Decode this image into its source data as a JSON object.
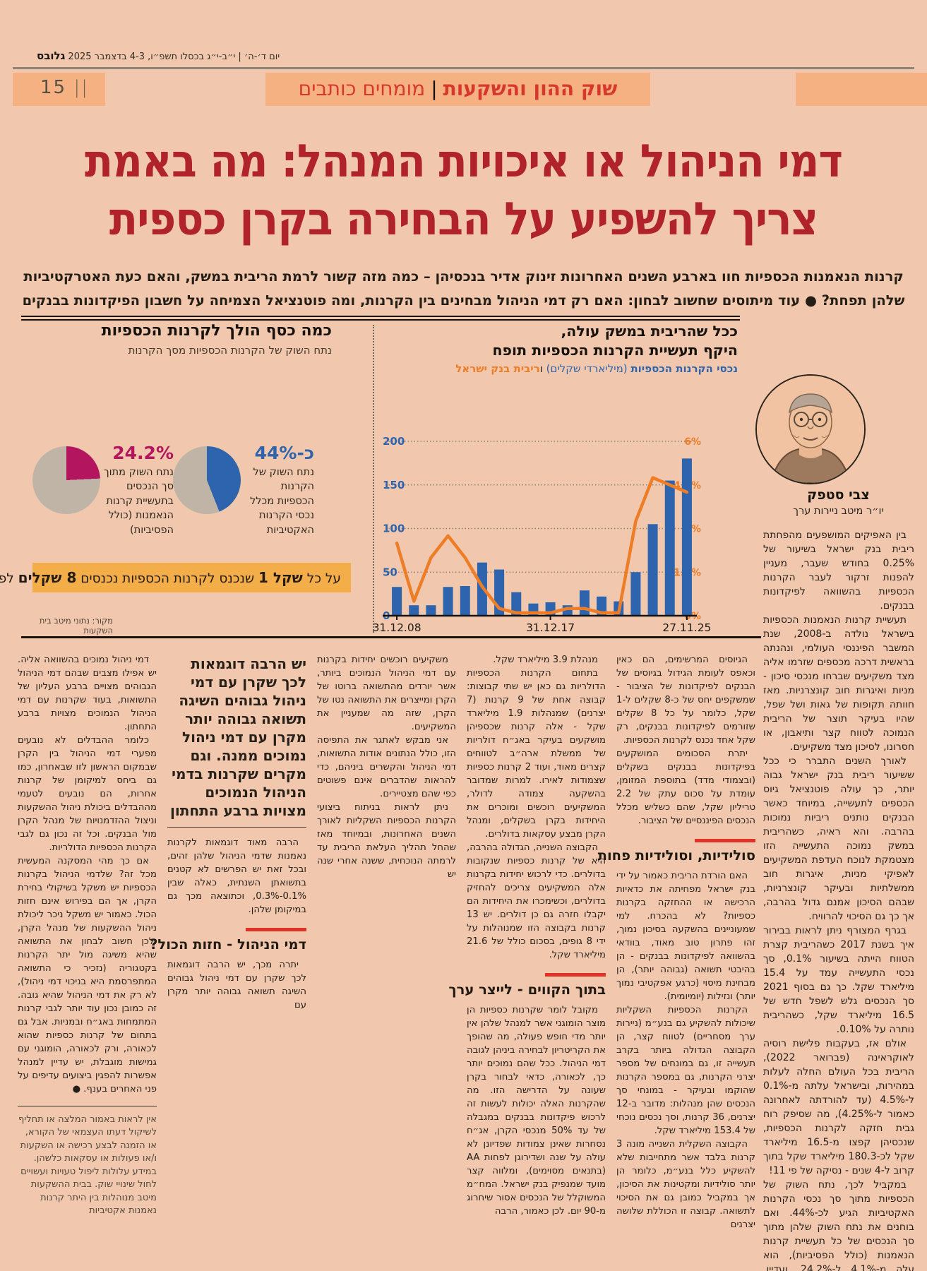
{
  "colors": {
    "page_bg": "#f1c8ad",
    "band_bg": "#f6b183",
    "accent_red": "#d6382c",
    "headline_red": "#b0232a",
    "subhead_bar_red": "#e03226",
    "blue": "#2d64ad",
    "orange": "#ed7d26",
    "magenta": "#b3165e",
    "pie_gray": "#c0b4a6",
    "strip_yellow": "#f3ad49"
  },
  "masthead": {
    "date_line": "יום ד׳-ה׳ | י״ב-י״ג בכסלו תשפ״ו, 4-3 בדצמבר 2025 ",
    "brand": "גלובס",
    "page_number": "15",
    "page_number_bars": "||",
    "section_title": "שוק ההון והשקעות",
    "section_separator": "|",
    "section_subtitle": "מומחים כותבים"
  },
  "headline": {
    "line1": "דמי הניהול או איכויות המנהל: מה באמת",
    "line2": "צריך להשפיע על הבחירה בקרן כספית"
  },
  "standfirst": {
    "line1": "קרנות הנאמנות הכספיות חוו בארבע השנים האחרונות זינוק אדיר בנכסיהן – כמה מזה קשור לרמת הריבית במשק, והאם כעת האטרקטיביות",
    "line2": "שלהן תפחת? ● עוד מיתוסים שחשוב לבחון: האם רק דמי הניהול מבחינים בין הקרנות, ומה פוטנציאל הצמיחה על חשבון הפיקדונות בבנקים"
  },
  "infographic": {
    "pies_title": "כמה כסף הולך לקרנות הכספיות",
    "pies_subtitle": "נתח השוק של הקרנות הכספיות מסך הקרנות",
    "chart_title_line1": "ככל שהריבית במשק עולה,",
    "chart_title_line2": "היקף תעשיית הקרנות הכספיות תופח",
    "legend": {
      "assets_bold": "נכסי הקרנות הכספיות",
      "assets_units": " (מיליארדי שקלים) ",
      "conjunction": "ו",
      "rate": "ריבית בנק ישראל"
    },
    "shekel_strip": {
      "prefix": "על כל ",
      "bold1": "1 שקל",
      "middle": " שנכנס לקרנות הכספיות נכנסים ",
      "bold2": "8 שקלים",
      "suffix": " לפיקדונות"
    },
    "source": "מקור: נתוני מיטב בית השקעות"
  },
  "chart_data": [
    {
      "type": "bar",
      "title": "ככל שהריבית במשק עולה, היקף תעשיית הקרנות הכספיות תופח",
      "categories": [
        "2008",
        "2009",
        "2010",
        "2011",
        "2012",
        "2013",
        "2014",
        "2015",
        "2016",
        "2017",
        "2018",
        "2019",
        "2020",
        "2021",
        "2022",
        "2023",
        "2024",
        "2025"
      ],
      "x_tick_labels": [
        {
          "index": 0,
          "label": "31.12.08"
        },
        {
          "index": 9,
          "label": "31.12.17"
        },
        {
          "index": 17,
          "label": "27.11.25"
        }
      ],
      "series": [
        {
          "name": "נכסי הקרנות הכספיות (מיליארדי שקלים)",
          "kind": "bar",
          "axis": "left",
          "color": "#2d64ad",
          "values": [
            33,
            12,
            12,
            33,
            34,
            61,
            53,
            27,
            14,
            15.4,
            12,
            29,
            22,
            16.5,
            50,
            105,
            155,
            180.3
          ]
        },
        {
          "name": "ריבית בנק ישראל",
          "kind": "line",
          "axis": "right",
          "color": "#ed7d26",
          "values": [
            2.5,
            0.5,
            2.0,
            2.75,
            2.0,
            1.0,
            0.25,
            0.1,
            0.1,
            0.1,
            0.25,
            0.25,
            0.1,
            0.1,
            3.25,
            4.75,
            4.5,
            4.25
          ]
        }
      ],
      "ylim_left": [
        0,
        200
      ],
      "left_ticks": [
        0,
        50,
        100,
        150,
        200
      ],
      "ylim_right_percent": [
        0,
        6
      ],
      "right_ticks": [
        "0%",
        "1.5%",
        "3%",
        "4.5%",
        "6%"
      ],
      "grid": "dotted-horizontal",
      "legend_position": "top-right"
    },
    {
      "type": "pie",
      "name": "share-of-active-funds",
      "value_label": "כ-44%",
      "label": "נתח השוק של הקרנות הכספיות מכלל נכסי הקרנות האקטיביות",
      "value": 44,
      "color": "#2d64ad",
      "rest_color": "#c0b4a6"
    },
    {
      "type": "pie",
      "name": "share-of-whole-industry",
      "value_label": "24.2%",
      "label": "נתח השוק מתוך סך הנכסים בתעשיית קרנות הנאמנות (כולל הפסיביות)",
      "value": 24.2,
      "color": "#b3165e",
      "rest_color": "#c0b4a6"
    }
  ],
  "author": {
    "name": "צבי סטפק",
    "role": "יו״ר מיטב ניירות ערך"
  },
  "columns": [
    {
      "id": "col-1",
      "items": [
        {
          "t": "p",
          "text": "בין האפיקים המושפעים מהפחתת ריבית בנק ישראל בשיעור של 0.25% בחודש שעבר, מעניין להפנות זרקור לעבר הקרנות הכספיות בהשוואה לפיקדונות בבנקים."
        },
        {
          "t": "p",
          "text": "תעשיית קרנות הנאמנות הכספיות בישראל נולדה ב-2008, שנת המשבר הפיננסי העולמי, ונהנתה בראשית דרכה מכספים שזרמו אליה מצד משקיעים שברחו מנכסי סיכון - מניות ואיגרות חוב קונצרניות. מאז חוותה תקופות של גאות ושל שפל, שהיו בעיקר תוצר של הריבית הנמוכה לטווח קצר ותיאבון, או חסרונו, לסיכון מצד משקיעים."
        },
        {
          "t": "p",
          "text": "לאורך השנים התברר כי ככל ששיעור ריבית בנק ישראל גבוה יותר, כך עולה פוטנציאל גיוס הכספים לתעשייה, במיוחד כאשר הבנקים נותנים ריביות נמוכות בהרבה. והא ראיה, כשהריבית במשק נמוכה התעשייה הזו מצטמקת לנוכח העדפת המשקיעים לאפיקי מניות, איגרות חוב ממשלתיות ובעיקר קונצרניות, שבהם הסיכון אמנם גדול בהרבה, אך כך גם הסיכוי להרוויח."
        },
        {
          "t": "p",
          "text": "בגרף המצורף ניתן לראות בבירור איך בשנת 2017 כשהריבית קצרת הטווח הייתה בשיעור 0.1%, סך נכסי התעשייה עמד על 15.4 מיליארד שקל. כך גם בסוף 2021 סך הנכסים גלש לשפל חדש של 16.5 מיליארד שקל, כשהריבית נותרה על 0.10%."
        },
        {
          "t": "p",
          "text": "אולם אז, בעקבות פלישת רוסיה לאוקראינה (פברואר 2022), הריבית בכל העולם החלה לעלות במהירות, ובישראל עלתה מ-0.1% ל-4.5% (עד להורדתה לאחרונה כאמור ל-4.25%), מה שסיפק רוח גבית חזקה לקרנות הכספיות, שנכסיהן קפצו מ-16.5 מיליארד שקל לכ-180.3 מיליארד שקל בתוך קרוב ל-4 שנים - נסיקה של פי 11!"
        },
        {
          "t": "p",
          "text": "במקביל לכך, נתח השוק של הכספיות מתוך סך נכסי הקרנות האקטיביות הגיע לכ-44%. ואם בוחנים את נתח השוק שלהן מתוך סך הנכסים של כל תעשיית קרנות הנאמנות (כולל הפסיביות), הוא עלה מ-4.1% ל-24.2%. ועדיין, למרות"
        }
      ]
    },
    {
      "id": "col-2",
      "items": [
        {
          "t": "p",
          "text": "הגיוסים המרשימים, הם כאין וכאפס לעומת הגידול בגיוסים של הבנקים לפיקדונות של הציבור - שמשקפים יחס של כ-8 שקלים ל-1 שקל, כלומר על כל 8 שקלים שזורמים לפיקדונות בבנקים, רק שקל אחד נכנס לקרנות הכספיות."
        },
        {
          "t": "p",
          "text": "יתרת הסכומים המושקעים בפיקדונות בבנקים בשקלים (ובצמודי מדד) בתוספת המזומן, עומדת על סכום עתק של 2.2 טריליון שקל, שהם כשליש מכלל הנכסים הפיננסיים של הציבור."
        },
        {
          "t": "sub",
          "text": "סולידיות, וסולידיות פחות"
        },
        {
          "t": "p",
          "text": "האם הורדת הריבית כאמור על ידי בנק ישראל מפחיתה את כדאיות הרכישה או ההחזקה בקרנות כספיות? לא בהכרח. למי שמעוניינים בהשקעה בסיכון נמוך, זהו פתרון טוב מאוד, בוודאי בהשוואה לפיקדונות בבנקים - הן בהיבטי תשואה (גבוהה יותר), הן מבחינת מיסוי (כרגע אפקטיבי נמוך יותר) ונזילות (יומיומית)."
        },
        {
          "t": "p",
          "text": "הקרנות הכספיות השקליות שיכולות להשקיע גם בנע״מ (ניירות ערך מסחריים) לטווח קצר, הן הקבוצה הגדולה ביותר בקרב תעשייה זו, גם במונחים של מספר יצרני הקרנות, גם במספר הקרנות שהוקמו ובעיקר - במונחי סך הנכסים שהן מנהלות: מדובר ב-12 יצרנים, 36 קרנות, וסך נכסים נוכחי של 153.4 מיליארד שקל."
        },
        {
          "t": "p",
          "text": "הקבוצה השקלית השנייה מונה 3 קרנות בלבד אשר מתחייבות שלא להשקיע כלל בנע״מ, כלומר הן יותר סולידיות ומקטינות את הסיכון, אך במקביל כמובן גם את הסיכוי לתשואה. קבוצה זו הכוללת שלושה יצרנים"
        }
      ]
    },
    {
      "id": "col-3",
      "items": [
        {
          "t": "p",
          "text": "מנהלת 3.9 מיליארד שקל."
        },
        {
          "t": "p",
          "text": "בתחום הקרנות הכספיות הדולריות גם כאן יש שתי קבוצות: קבוצה אחת של 9 קרנות (7 יצרנים) שמנהלות 1.9 מיליארד שקל - אלה קרנות שכספיהן מושקעים בעיקר באג״ח דולריות של ממשלת ארה״ב לטווחים קצרים מאוד, ועוד 2 קרנות כספיות שצמודות לאירו. למרות שמדובר בהשקעה צמודה לדולר, המשקיעים רוכשים ומוכרים את היחידות בקרן בשקלים, ומנהל הקרן מבצע עסקאות בדולרים."
        },
        {
          "t": "p",
          "text": "הקבוצה השנייה, הגדולה בהרבה, היא של קרנות כספיות שנקובות בדולרים. כדי לרכוש יחידות בקרנות אלה המשקיעים צריכים להחזיק בדולרים, וכשימכרו את היחידות הם יקבלו חזרה גם כן דולרים. יש 13 קרנות בקבוצה הזו שמנוהלות על ידי 8 גופים, בסכום כולל של 21.6 מיליארד שקל."
        },
        {
          "t": "sub",
          "text": "בתוך הקווים - לייצר ערך"
        },
        {
          "t": "p",
          "text": "מקובל לומר שקרנות כספיות הן מוצר הומוגני אשר למנהל שלהן אין יותר מדי חופש פעולה, מה שהופך את הקריטריון לבחירה ביניהן לגובה דמי הניהול. ככל שהם נמוכים יותר כך, לכאורה, כדאי לבחור בקרן שעונה על הדרישה הזו. מה שהקרנות האלה יכולות לעשות זה לרכוש פיקדונות בבנקים במגבלה של עד 50% מנכסי הקרן, אג״ח נסחרות שאינן צמודות שפדיונן לא עולה על שנה ושדירוגן לפחות AA (בתנאים מסוימים), ומלווה קצר מועד שמנפיק בנק ישראל. המח״מ המשוקלל של הנכסים אסור שיחרוג מ-90 יום. לכן כאמור, הרבה"
        }
      ]
    },
    {
      "id": "col-4",
      "items": [
        {
          "t": "p",
          "text": "משקיעים רוכשים יחידות בקרנות עם דמי הניהול הנמוכים ביותר, אשר יורדים מהתשואה ברוטו של הקרן ומייצרים את התשואה נטו של הקרן, שזה מה שמעניין את המשקיעים."
        },
        {
          "t": "p",
          "text": "אני מבקש לאתגר את התפיסה הזו, כולל הנתונים אודות התשואות, דמי הניהול והקשרים ביניהם, כדי להראות שהדברים אינם פשוטים כפי שהם מצטיירים."
        },
        {
          "t": "p",
          "text": "ניתן לראות בניתוח ביצועי הקרנות הכספיות השקליות לאורך השנים האחרונות, ובמיוחד מאז שהחל תהליך העלאת הריבית עד לרמתה הנוכחית, ששנה אחרי שנה יש"
        }
      ]
    },
    {
      "id": "col-5",
      "items": [
        {
          "t": "quote",
          "text": "יש הרבה דוגמאות לכך שקרן עם דמי ניהול גבוהים השיגה תשואה גבוהה יותר מקרן עם דמי ניהול נמוכים ממנה. וגם מקרים שקרנות בדמי הניהול הנמוכים מצויות ברבע התחתון"
        },
        {
          "t": "qrule"
        },
        {
          "t": "p",
          "text": "הרבה מאוד דוגמאות לקרנות נאמנות שדמי הניהול שלהן זהים, ובכל זאת יש הפרשים לא קטנים בתשואתן השנתית, כאלה שבין 0.1%-0.3%, וכתוצאה מכך גם במיקומן שלהן."
        },
        {
          "t": "sub",
          "text": "דמי הניהול - חזות הכול?"
        },
        {
          "t": "p",
          "text": "יתרה מכך, יש הרבה דוגמאות לכך שקרן עם דמי ניהול גבוהים השיגה תשואה גבוהה יותר מקרן עם"
        }
      ]
    },
    {
      "id": "col-6",
      "items": [
        {
          "t": "p",
          "text": "דמי ניהול נמוכים בהשוואה אליה. יש אפילו מצבים שבהם דמי הניהול הגבוהים מצויים ברבע העליון של התשואות, בעוד שקרנות עם דמי הניהול הנמוכים מצויות ברבע התחתון."
        },
        {
          "t": "p",
          "text": "כלומר ההבדלים לא נובעים מפערי דמי הניהול בין הקרן שבמקום הראשון לזו שבאחרון, כמו גם ביחס למיקומן של קרנות אחרות, הם נובעים לטעמי מההבדלים ביכולת ניהול ההשקעות וניצול ההזדמנויות של מנהל הקרן מול הבנקים. וכל זה נכון גם לגבי הקרנות הכספיות הדולריות."
        },
        {
          "t": "p",
          "text": "אם כך מהי המסקנה המעשית מכל זה? שלדמי הניהול בקרנות הכספיות יש משקל בשיקולי בחירת הקרן, אך הם בפירוש אינם חזות הכול. כאמור יש משקל ניכר ליכולת ניהול ההשקעות של מנהל הקרן, ולכן חשוב לבחון את התשואה שהיא משיגה מול יתר הקרנות בקטגוריה (נזכיר כי התשואה המתפרסמת היא בניכוי דמי ניהול), לא רק את דמי הניהול שהיא גובה. זה כמובן נכון עוד יותר לגבי קרנות המתמחות באג״ח ובמניות. אבל גם בתחום של קרנות כספיות שהוא לכאורה, ורק לכאורה, הומוגני עם גמישות מוגבלת, יש עדיין למנהל אפשרות להפגין ביצועים עדיפים על פני האחרים בענף. ●"
        },
        {
          "t": "endrule"
        },
        {
          "t": "disc",
          "text": "אין לראות באמור המלצה או תחליף לשיקול דעתו העצמאי של הקורא, או הזמנה לבצע רכישה או השקעות ו/או פעולות או עסקאות כלשהן. במידע עלולות ליפול טעויות ועשויים לחול שינויי שוק. בבית ההשקעות מיטב מנוהלות בין היתר קרנות נאמנות אקטיביות"
        }
      ]
    }
  ]
}
